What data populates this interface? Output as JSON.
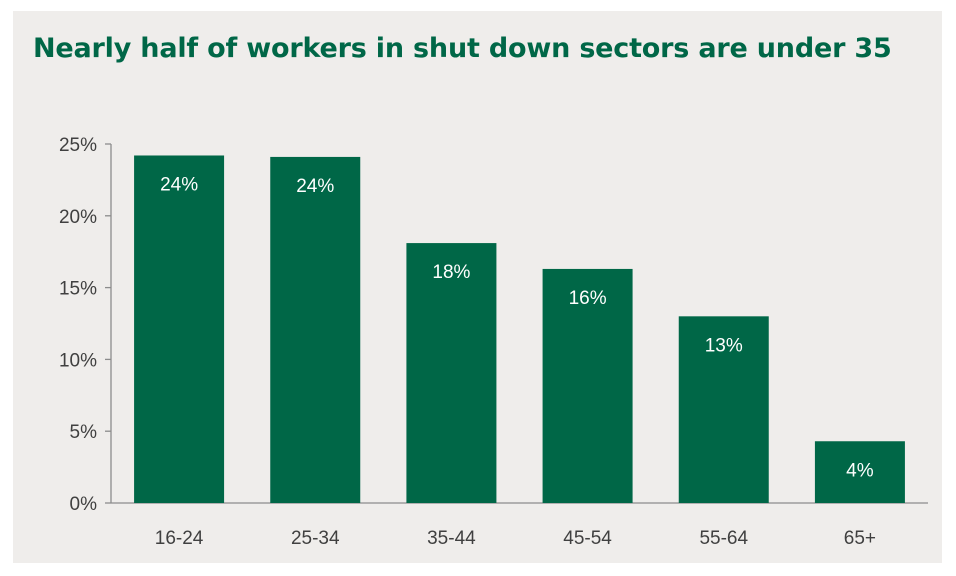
{
  "chart_data": {
    "type": "bar",
    "title": "Nearly half of workers in shut down sectors are under 35",
    "categories": [
      "16-24",
      "25-34",
      "35-44",
      "45-54",
      "55-64",
      "65+"
    ],
    "values": [
      24.2,
      24.1,
      18.1,
      16.3,
      13.0,
      4.3
    ],
    "data_labels": [
      "24%",
      "24%",
      "18%",
      "16%",
      "13%",
      "4%"
    ],
    "yticks": [
      "0%",
      "5%",
      "10%",
      "15%",
      "20%",
      "25%"
    ],
    "ylim": [
      0,
      25
    ],
    "xlabel": "",
    "ylabel": "",
    "grid": false,
    "legend": "none",
    "bar_color": "#006747",
    "title_color": "#006747",
    "background": "#efedeb"
  }
}
